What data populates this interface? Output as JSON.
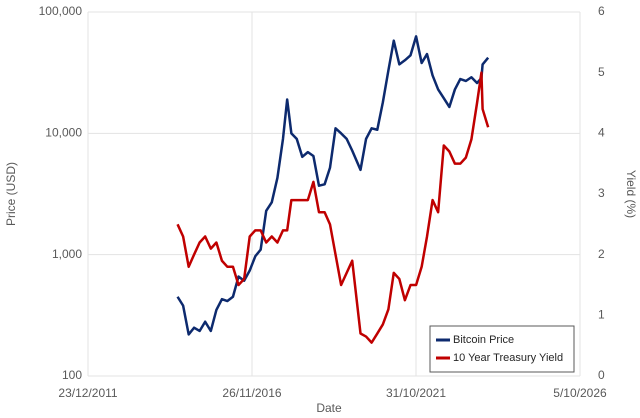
{
  "chart_data": {
    "type": "line",
    "x_label": "Date",
    "y_label": "Price (USD)",
    "y2_label": "Yield (%)",
    "x": [
      "2014-09-01",
      "2014-11-01",
      "2015-01-01",
      "2015-03-01",
      "2015-05-01",
      "2015-07-01",
      "2015-09-01",
      "2015-11-01",
      "2016-01-01",
      "2016-03-01",
      "2016-05-01",
      "2016-07-01",
      "2016-09-01",
      "2016-11-01",
      "2017-01-01",
      "2017-03-01",
      "2017-05-01",
      "2017-07-01",
      "2017-09-01",
      "2017-11-01",
      "2017-12-17",
      "2018-02-01",
      "2018-04-01",
      "2018-06-01",
      "2018-08-01",
      "2018-10-01",
      "2018-12-01",
      "2019-02-01",
      "2019-04-01",
      "2019-06-01",
      "2019-08-01",
      "2019-10-01",
      "2019-12-01",
      "2020-03-01",
      "2020-05-01",
      "2020-07-01",
      "2020-09-01",
      "2020-11-01",
      "2021-01-01",
      "2021-03-01",
      "2021-05-01",
      "2021-07-01",
      "2021-09-01",
      "2021-11-01",
      "2022-01-01",
      "2022-03-01",
      "2022-05-01",
      "2022-07-01",
      "2022-09-01",
      "2022-11-01",
      "2023-01-01",
      "2023-03-01",
      "2023-05-01",
      "2023-07-01",
      "2023-09-01",
      "2023-10-19",
      "2023-11-01",
      "2024-01-01"
    ],
    "series": [
      {
        "name": "Bitcoin Price",
        "color": "#0d2a6e",
        "axis": "y",
        "values": [
          450,
          380,
          220,
          250,
          235,
          280,
          235,
          350,
          430,
          415,
          450,
          660,
          610,
          740,
          970,
          1100,
          2300,
          2700,
          4300,
          9000,
          19000,
          10000,
          9000,
          6400,
          7000,
          6500,
          3700,
          3800,
          5200,
          11000,
          10000,
          9000,
          7200,
          5000,
          9000,
          11000,
          10700,
          18000,
          33000,
          58000,
          37000,
          40000,
          44000,
          63000,
          38000,
          45000,
          30000,
          23000,
          19500,
          16500,
          23000,
          28000,
          27000,
          29000,
          26000,
          28500,
          37000,
          42000
        ]
      },
      {
        "name": "10 Year Treasury Yield",
        "color": "#c00000",
        "axis": "y2",
        "values": [
          2.5,
          2.3,
          1.8,
          2.0,
          2.2,
          2.3,
          2.1,
          2.2,
          1.9,
          1.8,
          1.8,
          1.5,
          1.6,
          2.3,
          2.4,
          2.4,
          2.2,
          2.3,
          2.2,
          2.4,
          2.4,
          2.9,
          2.9,
          2.9,
          2.9,
          3.2,
          2.7,
          2.7,
          2.5,
          2.0,
          1.5,
          1.7,
          1.9,
          0.7,
          0.65,
          0.55,
          0.7,
          0.85,
          1.1,
          1.7,
          1.6,
          1.25,
          1.5,
          1.5,
          1.8,
          2.3,
          2.9,
          2.7,
          3.8,
          3.7,
          3.5,
          3.5,
          3.6,
          3.9,
          4.5,
          5.0,
          4.4,
          4.1
        ]
      }
    ],
    "xlim": [
      "2011-12-23",
      "2026-10-05"
    ],
    "xticks": [
      {
        "value": "2011-12-23",
        "label": "23/12/2011"
      },
      {
        "value": "2016-11-26",
        "label": "26/11/2016"
      },
      {
        "value": "2021-10-31",
        "label": "31/10/2021"
      },
      {
        "value": "2026-10-05",
        "label": "5/10/2026"
      }
    ],
    "ylim": [
      100,
      100000
    ],
    "y_log": true,
    "yticks": [
      100,
      {
        "value": 1000,
        "label": "1,000"
      },
      {
        "value": 10000,
        "label": "10,000"
      },
      {
        "value": 100000,
        "label": "100,000"
      }
    ],
    "y2lim": [
      0,
      6
    ],
    "y2ticks": [
      0,
      1,
      2,
      3,
      4,
      5,
      6
    ],
    "grid": true,
    "legend": "lower right"
  }
}
